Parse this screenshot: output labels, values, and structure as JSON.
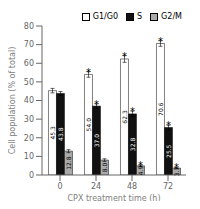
{
  "chart_data": {
    "type": "bar",
    "categories": [
      "0",
      "24",
      "48",
      "72"
    ],
    "xlabel": "CPX treatment time (h)",
    "ylabel": "Cell population (% of total)",
    "ylim": [
      0,
      80
    ],
    "yticks": [
      0,
      10,
      20,
      30,
      40,
      50,
      60,
      70,
      80
    ],
    "grid": false,
    "legend": "upper right",
    "data_labels": true,
    "series": [
      {
        "name": "G1/G0",
        "color": "#ffffff",
        "values": [
          45.3,
          54.0,
          62.3,
          70.6
        ],
        "value_labels": [
          "45.3",
          "54.0",
          "62.3",
          "70.6"
        ],
        "errors": [
          1.2,
          1.5,
          1.8,
          1.5
        ],
        "annotations": [
          null,
          "*",
          "*",
          "*"
        ]
      },
      {
        "name": "S",
        "color": "#111111",
        "values": [
          43.8,
          37.0,
          32.8,
          25.5
        ],
        "value_labels": [
          "43.8",
          "37.0",
          "32.8",
          "25.5"
        ],
        "errors": [
          1.0,
          1.2,
          1.5,
          1.2
        ],
        "annotations": [
          null,
          "*",
          "*",
          "*"
        ]
      },
      {
        "name": "G2/M",
        "color": "#aaaaaa",
        "values": [
          12.8,
          8.0,
          4.9,
          3.7
        ],
        "value_labels": [
          "12.8",
          "8.0",
          "4.9",
          "3.7"
        ],
        "errors": [
          0.8,
          0.7,
          0.5,
          0.4
        ],
        "annotations": [
          null,
          null,
          "*",
          "*"
        ]
      }
    ]
  }
}
